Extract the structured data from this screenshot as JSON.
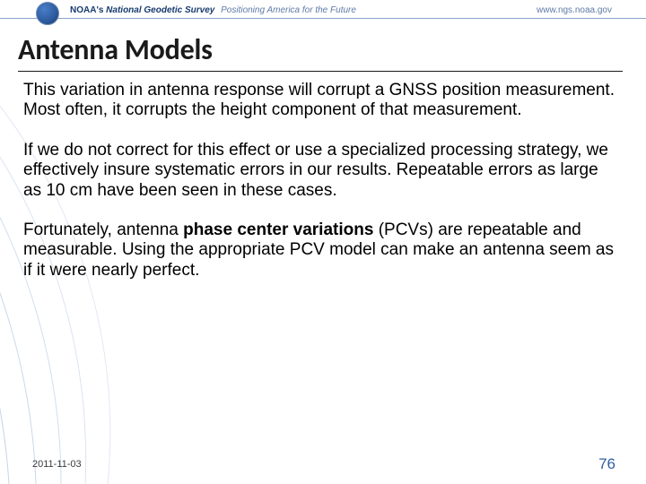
{
  "header": {
    "org_abbr": "NOAA's",
    "org_name": "National Geodetic Survey",
    "tagline": "Positioning America for the Future",
    "url": "www.ngs.noaa.gov"
  },
  "slide": {
    "title": "Antenna Models",
    "paragraphs": [
      "This variation in antenna response will corrupt a GNSS position measurement. Most often, it corrupts the height component of that measurement.",
      "If we do not correct for this effect or use a specialized processing strategy, we effectively insure systematic errors in our results. Repeatable errors as large as 10 cm have been seen in these cases.",
      "Fortunately, antenna <b>phase center variations</b> (PCVs) are repeatable and measurable. Using the appropriate PCV model can make an antenna seem as if it were nearly perfect."
    ]
  },
  "footer": {
    "date": "2011-11-03",
    "page": "76"
  },
  "style": {
    "arc_stroke": "#c9d5e6",
    "arc_stroke_light": "#e1e8f2",
    "header_line": "#8aa4c8",
    "title_color": "#1a1a1a",
    "body_color": "#000000",
    "page_color": "#2f5fa3"
  }
}
